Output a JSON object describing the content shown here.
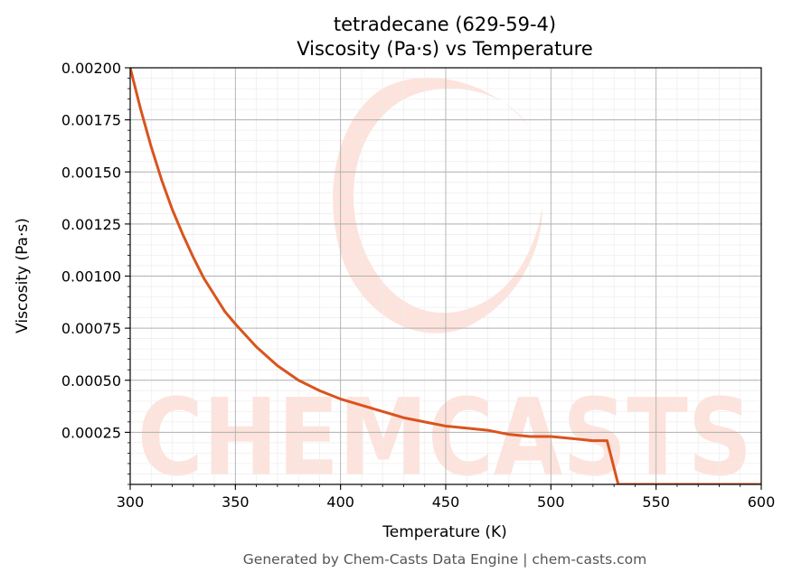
{
  "chart_data": {
    "type": "line",
    "title": "tetradecane (629-59-4)",
    "subtitle": "Viscosity (Pa·s) vs Temperature",
    "xlabel": "Temperature (K)",
    "ylabel": "Viscosity (Pa·s)",
    "xlim": [
      300,
      600
    ],
    "ylim": [
      0.0,
      0.002
    ],
    "x_ticks": [
      "300",
      "350",
      "400",
      "450",
      "500",
      "550",
      "600"
    ],
    "y_ticks": [
      "0.00025",
      "0.00050",
      "0.00075",
      "0.00100",
      "0.00125",
      "0.00150",
      "0.00175",
      "0.00200"
    ],
    "grid": true,
    "line_color": "#d9541e",
    "watermark": "CHEMCASTS",
    "series": [
      {
        "x": [
          300,
          305,
          310,
          315,
          320,
          325,
          330,
          335,
          340,
          345,
          350,
          360,
          370,
          380,
          390,
          400,
          410,
          420,
          430,
          440,
          450,
          460,
          470,
          480,
          490,
          500,
          510,
          520,
          526.7,
          532,
          540,
          550,
          560,
          570,
          580,
          590,
          600
        ],
        "y": [
          0.002,
          0.0018,
          0.00162,
          0.00146,
          0.00132,
          0.0012,
          0.00109,
          0.00099,
          0.00091,
          0.00083,
          0.00077,
          0.00066,
          0.00057,
          0.0005,
          0.00045,
          0.00041,
          0.00038,
          0.00035,
          0.00032,
          0.0003,
          0.00028,
          0.00027,
          0.00026,
          0.00024,
          0.00023,
          0.00023,
          0.00022,
          0.00021,
          0.00021,
          0.0,
          0.0,
          0.0,
          0.0,
          0.0,
          0.0,
          0.0,
          0.0
        ]
      }
    ]
  },
  "footer": "Generated by Chem-Casts Data Engine | chem-casts.com"
}
